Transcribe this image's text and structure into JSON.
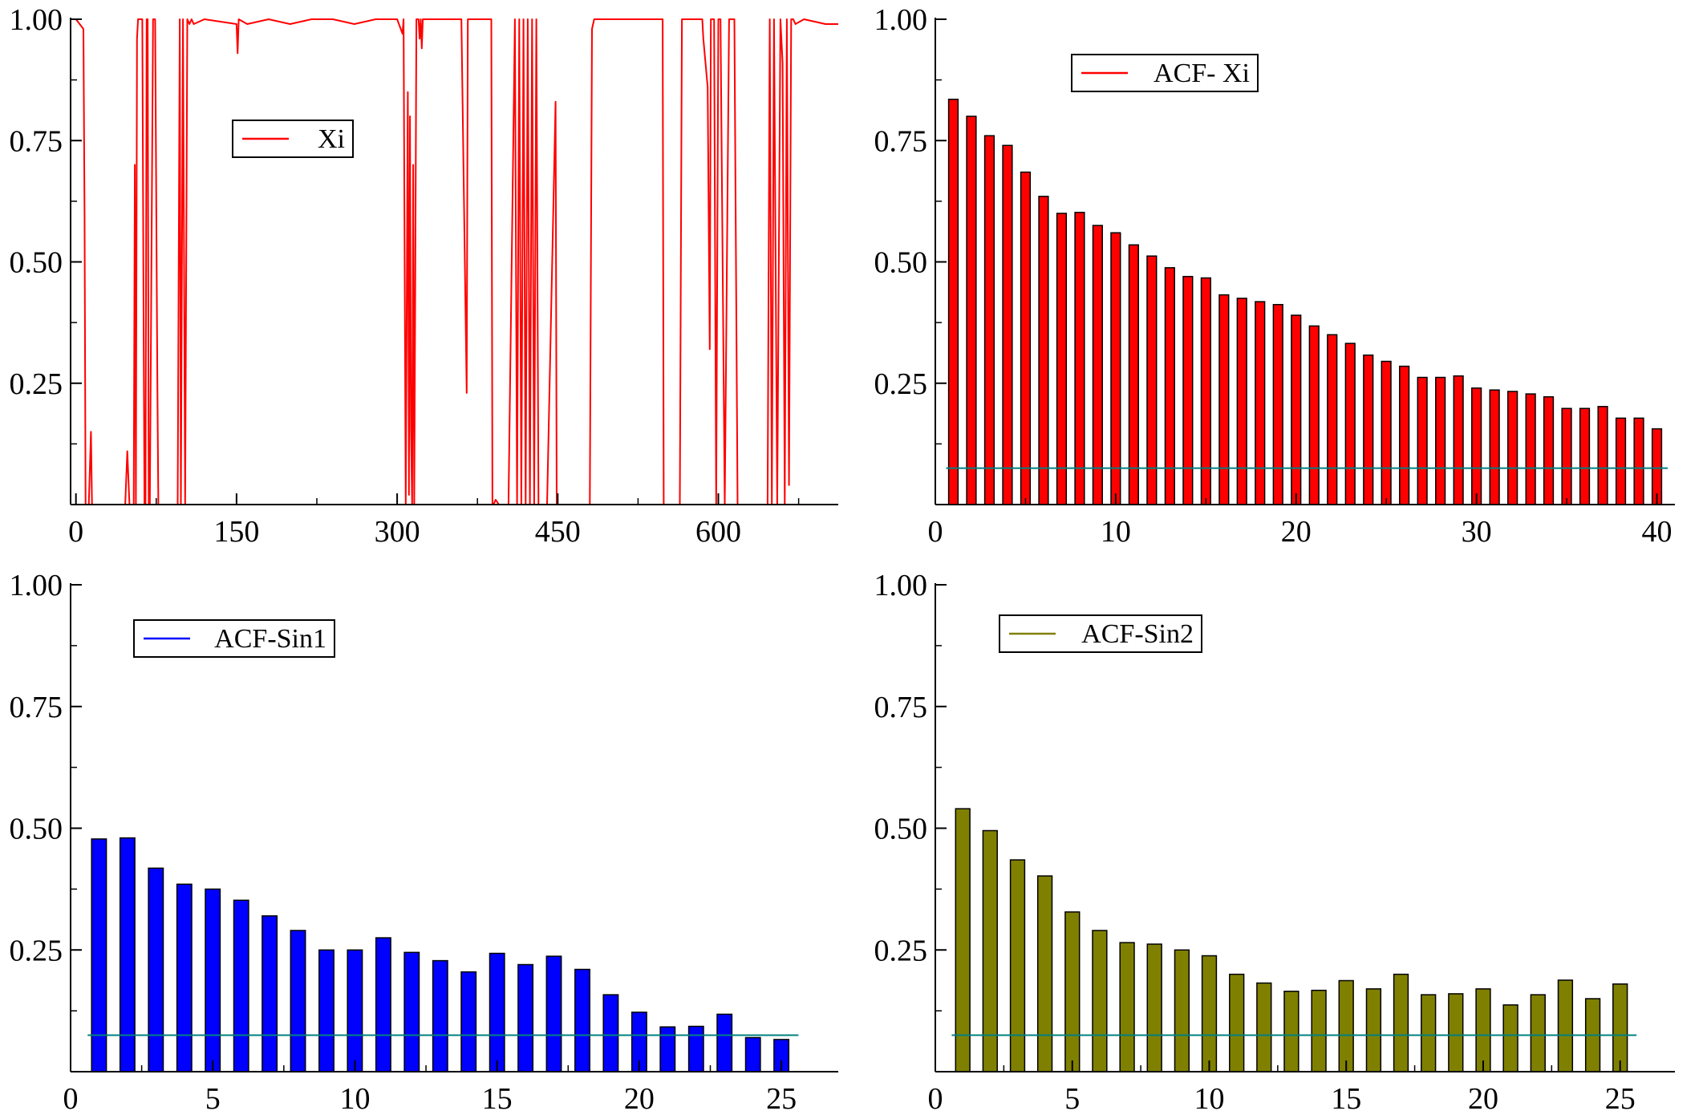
{
  "chart_data": [
    {
      "type": "line",
      "title": "",
      "xlabel": "",
      "ylabel": "",
      "xlim": [
        -5,
        712
      ],
      "ylim": [
        0,
        1
      ],
      "xticks": [
        0,
        150,
        300,
        450,
        600
      ],
      "xtick_labels": [
        "0",
        "150",
        "300",
        "450",
        "600"
      ],
      "yticks": [
        0.25,
        0.5,
        0.75,
        1.0
      ],
      "ytick_labels": [
        "0.25",
        "0.50",
        "0.75",
        "1.00"
      ],
      "grid": false,
      "legend": {
        "position": "top-center",
        "entries": [
          {
            "label": "Xi",
            "color": "#ff0000"
          }
        ]
      },
      "series": [
        {
          "name": "Xi",
          "color": "#ff0000",
          "x": [
            0,
            7,
            8,
            9,
            10,
            12,
            14,
            15,
            16,
            17,
            20,
            30,
            46,
            48,
            50,
            54,
            55,
            56,
            57,
            58,
            60,
            62,
            63,
            64,
            65,
            66,
            67,
            68,
            69,
            72,
            74,
            76,
            77,
            78,
            79,
            80,
            85,
            95,
            97,
            98,
            100,
            102,
            104,
            106,
            108,
            110,
            120,
            150,
            151,
            152,
            160,
            180,
            200,
            220,
            240,
            260,
            280,
            300,
            305,
            306,
            308,
            310,
            311,
            312,
            313,
            314,
            315,
            316,
            317,
            318,
            319,
            320,
            321,
            322,
            323,
            324,
            325,
            330,
            340,
            360,
            365,
            366,
            367,
            368,
            370,
            380,
            388,
            389,
            390,
            392,
            395,
            400,
            402,
            404,
            410,
            412,
            414,
            416,
            418,
            420,
            422,
            424,
            426,
            428,
            430,
            432,
            434,
            436,
            440,
            448,
            449,
            450,
            452,
            460,
            470,
            480,
            482,
            484,
            486,
            490,
            500,
            520,
            540,
            548,
            549,
            550,
            552,
            560,
            564,
            566,
            568,
            570,
            580,
            585,
            586,
            590,
            592,
            593,
            594,
            596,
            598,
            600,
            602,
            606,
            610,
            615,
            618,
            620,
            626,
            630,
            640,
            646,
            648,
            650,
            652,
            655,
            658,
            660,
            662,
            664,
            666,
            668,
            670,
            672,
            680,
            700,
            712
          ],
          "y": [
            1.0,
            0.98,
            0.6,
            0.0,
            0.0,
            0.0,
            0.15,
            0.0,
            0.0,
            0.0,
            0.0,
            0.0,
            0.0,
            0.11,
            0.0,
            0.0,
            0.7,
            0.0,
            0.96,
            1.0,
            1.0,
            1.0,
            0.46,
            0.0,
            0.0,
            1.0,
            1.0,
            0.0,
            0.0,
            1.0,
            1.0,
            0.27,
            0.0,
            0.0,
            0.0,
            0.0,
            0.0,
            0.0,
            1.0,
            0.0,
            1.0,
            0.0,
            1.0,
            0.99,
            1.0,
            0.99,
            1.0,
            0.99,
            0.93,
            1.0,
            0.99,
            1.0,
            0.99,
            1.0,
            1.0,
            0.99,
            1.0,
            1.0,
            0.97,
            1.0,
            0.0,
            0.85,
            0.02,
            0.8,
            0.15,
            0.0,
            0.7,
            0.0,
            0.51,
            1.0,
            1.0,
            1.0,
            0.96,
            1.0,
            0.94,
            1.0,
            1.0,
            1.0,
            1.0,
            1.0,
            0.23,
            1.0,
            1.0,
            1.0,
            1.0,
            1.0,
            1.0,
            0.0,
            0.0,
            0.01,
            0.0,
            0.0,
            0.0,
            0.0,
            1.0,
            0.0,
            1.0,
            0.0,
            1.0,
            0.0,
            1.0,
            0.0,
            1.0,
            0.0,
            1.0,
            0.0,
            0.0,
            0.0,
            0.0,
            0.83,
            0.0,
            0.0,
            0.0,
            0.0,
            0.0,
            0.0,
            0.98,
            1.0,
            1.0,
            1.0,
            1.0,
            1.0,
            1.0,
            1.0,
            0.0,
            0.0,
            0.0,
            0.0,
            0.0,
            1.0,
            1.0,
            1.0,
            1.0,
            1.0,
            0.96,
            0.86,
            0.32,
            1.0,
            1.0,
            1.0,
            0.0,
            1.0,
            1.0,
            0.0,
            1.0,
            1.0,
            0.0,
            0.0,
            0.0,
            0.0,
            0.0,
            0.0,
            1.0,
            0.0,
            1.0,
            0.0,
            1.0,
            0.91,
            0.0,
            1.0,
            0.04,
            1.0,
            1.0,
            0.99,
            1.0,
            0.99,
            0.99
          ]
        }
      ]
    },
    {
      "type": "bar",
      "title": "",
      "xlabel": "",
      "ylabel": "",
      "xlim": [
        0,
        41
      ],
      "ylim": [
        0,
        1
      ],
      "xticks": [
        0,
        10,
        20,
        30,
        40
      ],
      "xtick_labels": [
        "0",
        "10",
        "20",
        "30",
        "40"
      ],
      "yticks": [
        0.25,
        0.5,
        0.75,
        1.0
      ],
      "ytick_labels": [
        "0.25",
        "0.50",
        "0.75",
        "1.00"
      ],
      "grid": false,
      "bar_color": "#ff0000",
      "reference_line": {
        "y": 0.075,
        "color": "#008080"
      },
      "legend": {
        "position": "top-center",
        "entries": [
          {
            "label": "ACF- Xi",
            "color": "#ff0000"
          }
        ]
      },
      "series": [
        {
          "name": "ACF- Xi",
          "x": [
            1,
            2,
            3,
            4,
            5,
            6,
            7,
            8,
            9,
            10,
            11,
            12,
            13,
            14,
            15,
            16,
            17,
            18,
            19,
            20,
            21,
            22,
            23,
            24,
            25,
            26,
            27,
            28,
            29,
            30,
            31,
            32,
            33,
            34,
            35,
            36,
            37,
            38,
            39,
            40
          ],
          "values": [
            0.835,
            0.8,
            0.76,
            0.74,
            0.685,
            0.635,
            0.6,
            0.602,
            0.575,
            0.56,
            0.535,
            0.512,
            0.488,
            0.47,
            0.467,
            0.432,
            0.425,
            0.418,
            0.412,
            0.39,
            0.368,
            0.35,
            0.332,
            0.308,
            0.295,
            0.285,
            0.262,
            0.262,
            0.265,
            0.24,
            0.236,
            0.233,
            0.228,
            0.222,
            0.198,
            0.198,
            0.202,
            0.178,
            0.178,
            0.156
          ]
        }
      ]
    },
    {
      "type": "bar",
      "title": "",
      "xlabel": "",
      "ylabel": "",
      "xlim": [
        0,
        27
      ],
      "ylim": [
        0,
        1
      ],
      "xticks": [
        0,
        5,
        10,
        15,
        20,
        25
      ],
      "xtick_labels": [
        "0",
        "5",
        "10",
        "15",
        "20",
        "25"
      ],
      "yticks": [
        0.25,
        0.5,
        0.75,
        1.0
      ],
      "ytick_labels": [
        "0.25",
        "0.50",
        "0.75",
        "1.00"
      ],
      "grid": false,
      "bar_color": "#0000ff",
      "reference_line": {
        "y": 0.075,
        "color": "#008080"
      },
      "legend": {
        "position": "top-left",
        "entries": [
          {
            "label": "ACF-Sin1",
            "color": "#0000ff"
          }
        ]
      },
      "series": [
        {
          "name": "ACF-Sin1",
          "x": [
            1,
            2,
            3,
            4,
            5,
            6,
            7,
            8,
            9,
            10,
            11,
            12,
            13,
            14,
            15,
            16,
            17,
            18,
            19,
            20,
            21,
            22,
            23,
            24,
            25
          ],
          "values": [
            0.478,
            0.48,
            0.418,
            0.385,
            0.375,
            0.352,
            0.32,
            0.29,
            0.25,
            0.25,
            0.275,
            0.245,
            0.228,
            0.205,
            0.243,
            0.22,
            0.237,
            0.21,
            0.158,
            0.122,
            0.092,
            0.093,
            0.118,
            0.07,
            0.066
          ]
        }
      ]
    },
    {
      "type": "bar",
      "title": "",
      "xlabel": "",
      "ylabel": "",
      "xlim": [
        0,
        27
      ],
      "ylim": [
        0,
        1
      ],
      "xticks": [
        0,
        5,
        10,
        15,
        20,
        25
      ],
      "xtick_labels": [
        "0",
        "5",
        "10",
        "15",
        "20",
        "25"
      ],
      "yticks": [
        0.25,
        0.5,
        0.75,
        1.0
      ],
      "ytick_labels": [
        "0.25",
        "0.50",
        "0.75",
        "1.00"
      ],
      "grid": false,
      "bar_color": "#808000",
      "reference_line": {
        "y": 0.075,
        "color": "#008080"
      },
      "legend": {
        "position": "top-left",
        "entries": [
          {
            "label": "ACF-Sin2",
            "color": "#808000"
          }
        ]
      },
      "series": [
        {
          "name": "ACF-Sin2",
          "x": [
            1,
            2,
            3,
            4,
            5,
            6,
            7,
            8,
            9,
            10,
            11,
            12,
            13,
            14,
            15,
            16,
            17,
            18,
            19,
            20,
            21,
            22,
            23,
            24,
            25
          ],
          "values": [
            0.54,
            0.495,
            0.435,
            0.402,
            0.328,
            0.29,
            0.265,
            0.262,
            0.25,
            0.238,
            0.2,
            0.182,
            0.165,
            0.167,
            0.187,
            0.17,
            0.2,
            0.158,
            0.16,
            0.17,
            0.137,
            0.158,
            0.188,
            0.15,
            0.18
          ]
        }
      ]
    }
  ]
}
